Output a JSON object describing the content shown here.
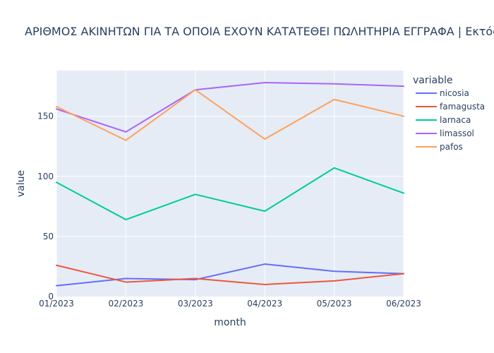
{
  "chart_data": {
    "type": "line",
    "title": "ΑΡΙΘΜΟΣ ΑΚΙΝΗΤΩΝ ΓΙΑ ΤΑ ΟΠΟΙΑ ΕΧΟΥΝ ΚΑΤΑΤΕΘΕΙ ΠΩΛΗΤΗΡΙΑ ΕΓΓΡΑΦΑ | Εκτός Αλλοδαπών",
    "xlabel": "month",
    "ylabel": "value",
    "categories": [
      "01/2023",
      "02/2023",
      "03/2023",
      "04/2023",
      "05/2023",
      "06/2023"
    ],
    "ylim": [
      0,
      188
    ],
    "yticks": [
      0,
      50,
      100,
      150
    ],
    "grid": true,
    "legend_title": "variable",
    "legend_position": "right",
    "series": [
      {
        "name": "nicosia",
        "color": "#636efa",
        "values": [
          9,
          15,
          14,
          27,
          21,
          19
        ]
      },
      {
        "name": "famagusta",
        "color": "#EF553B",
        "values": [
          26,
          12,
          15,
          10,
          13,
          19
        ]
      },
      {
        "name": "larnaca",
        "color": "#00cc96",
        "values": [
          95,
          64,
          85,
          71,
          107,
          86
        ]
      },
      {
        "name": "limassol",
        "color": "#ab63fa",
        "values": [
          156,
          137,
          172,
          178,
          177,
          175
        ]
      },
      {
        "name": "pafos",
        "color": "#FFA15A",
        "values": [
          158,
          130,
          172,
          131,
          164,
          150
        ]
      }
    ],
    "plot_background": "#E5ECF6"
  }
}
